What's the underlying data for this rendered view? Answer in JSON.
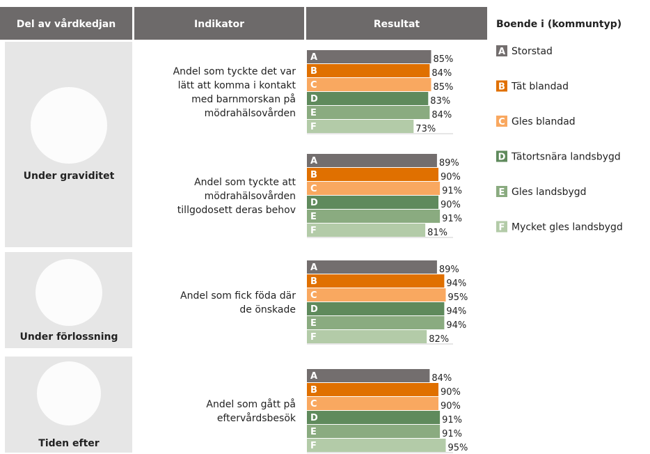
{
  "header": {
    "columns": [
      "Del av vårdkedjan",
      "Indikator",
      "Resultat"
    ]
  },
  "legend": {
    "title": "Boende i (kommuntyp)",
    "items": [
      {
        "letter": "A",
        "label": "Storstad",
        "color": "#736e6e"
      },
      {
        "letter": "B",
        "label": "Tät blandad",
        "color": "#e07000"
      },
      {
        "letter": "C",
        "label": "Gles blandad",
        "color": "#f9a860"
      },
      {
        "letter": "D",
        "label": "Tätortsnära landsbygd",
        "color": "#5f8a5c"
      },
      {
        "letter": "E",
        "label": "Gles landsbygd",
        "color": "#8aab80"
      },
      {
        "letter": "F",
        "label": "Mycket gles landsbygd",
        "color": "#b3cba8"
      }
    ]
  },
  "xlim": [
    0,
    100
  ],
  "sections": [
    {
      "label": "Under graviditet",
      "indicators": [
        {
          "lines": [
            "Andel som tyckte det var",
            "lätt att komma i kontakt",
            "med barnmorskan på",
            "mödrahälsovården"
          ],
          "values": [
            85,
            84,
            85,
            83,
            84,
            73
          ],
          "value_labels": [
            "85%",
            "84%",
            "85%",
            "83%",
            "84%",
            "73%"
          ]
        },
        {
          "lines": [
            "Andel som tyckte att",
            "mödrahälsovården",
            "tillgodosett deras behov"
          ],
          "values": [
            89,
            90,
            91,
            90,
            91,
            81
          ],
          "value_labels": [
            "89%",
            "90%",
            "91%",
            "90%",
            "91%",
            "81%"
          ]
        }
      ]
    },
    {
      "label": "Under förlossning",
      "indicators": [
        {
          "lines": [
            "Andel som fick föda där",
            "de önskade"
          ],
          "values": [
            89,
            94,
            95,
            94,
            94,
            82
          ],
          "value_labels": [
            "89%",
            "94%",
            "95%",
            "94%",
            "94%",
            "82%"
          ]
        }
      ]
    },
    {
      "label": "Tiden efter",
      "indicators": [
        {
          "lines": [
            "Andel som gått på",
            "eftervårdsbesök"
          ],
          "values": [
            84,
            90,
            90,
            91,
            91,
            95
          ],
          "value_labels": [
            "84%",
            "90%",
            "90%",
            "91%",
            "91%",
            "95%"
          ]
        }
      ]
    }
  ]
}
